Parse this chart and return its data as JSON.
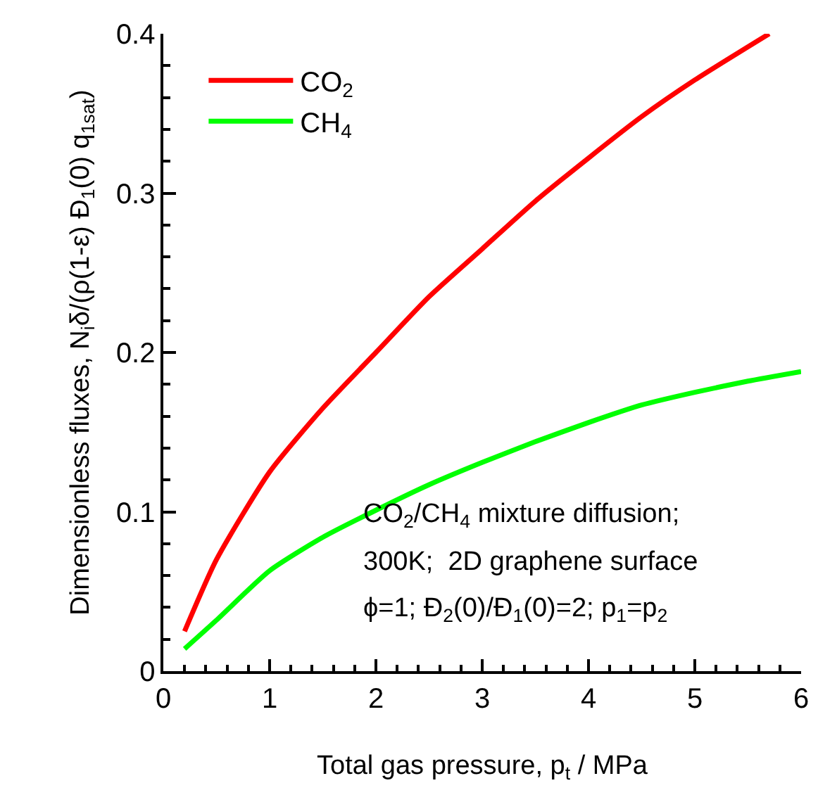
{
  "chart_data": {
    "type": "line",
    "xlabel": "Total gas pressure, p$_{t}$ / MPa",
    "ylabel": "Dimensionless fluxes, N$_{i}$δ/(ρ(1-ε) Đ$_{1}$(0) q$_{1sat}$)",
    "xlim": [
      0,
      6
    ],
    "xticks": [
      0,
      1,
      2,
      3,
      4,
      5,
      6
    ],
    "ylim": [
      0,
      0.4
    ],
    "yticks": [
      0.0,
      0.1,
      0.2,
      0.3,
      0.4
    ],
    "grid": false,
    "legend": "top left",
    "marker": "none",
    "line_style": "solid",
    "series": [
      {
        "name": "CO$_{2}$",
        "color": "#ff0000",
        "x": [
          0.2,
          0.5,
          1,
          1.5,
          2,
          2.5,
          3,
          3.5,
          4,
          4.5,
          5,
          5.7
        ],
        "values": [
          0.025,
          0.07,
          0.125,
          0.165,
          0.2,
          0.235,
          0.265,
          0.295,
          0.322,
          0.348,
          0.371,
          0.4
        ]
      },
      {
        "name": "CH$_{4}$",
        "color": "#00ff00",
        "x": [
          0.2,
          0.5,
          1,
          1.5,
          2,
          2.5,
          3,
          3.5,
          4,
          4.5,
          5,
          5.5,
          6
        ],
        "values": [
          0.014,
          0.032,
          0.063,
          0.084,
          0.101,
          0.117,
          0.131,
          0.144,
          0.156,
          0.167,
          0.175,
          0.182,
          0.188
        ]
      }
    ],
    "annotations": [
      "CO$_{2}$/CH$_{4}$ mixture diffusion;",
      "300K;  2D graphene surface",
      "ϕ=1; Đ$_{2}$(0)/Đ$_{1}$(0)=2; p$_{1}$=p$_{2}$"
    ]
  }
}
